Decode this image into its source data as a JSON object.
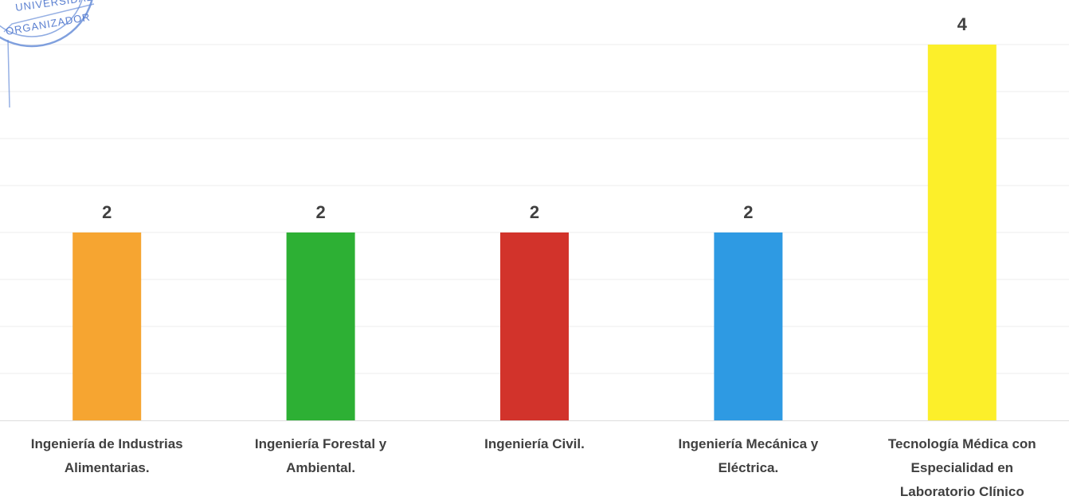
{
  "chart_data": {
    "type": "bar",
    "title": "",
    "xlabel": "",
    "ylabel": "",
    "ylim": [
      0,
      4
    ],
    "grid": true,
    "legend": "none",
    "categories": [
      [
        "Ingeniería de Industrias",
        "Alimentarias."
      ],
      [
        "Ingeniería Forestal y",
        "Ambiental."
      ],
      [
        "Ingeniería Civil."
      ],
      [
        "Ingeniería Mecánica y",
        "Eléctrica."
      ],
      [
        "Tecnología Médica con",
        "Especialidad en",
        "Laboratorio Clínico"
      ]
    ],
    "values": [
      2,
      2,
      2,
      2,
      4
    ],
    "colors": [
      "#f6a531",
      "#2db034",
      "#d2332b",
      "#2e9ae3",
      "#fcef2a"
    ]
  },
  "stamp": {
    "text_top": "UNIVERSIDAD",
    "text_bottom": "ORGANIZADOR"
  }
}
